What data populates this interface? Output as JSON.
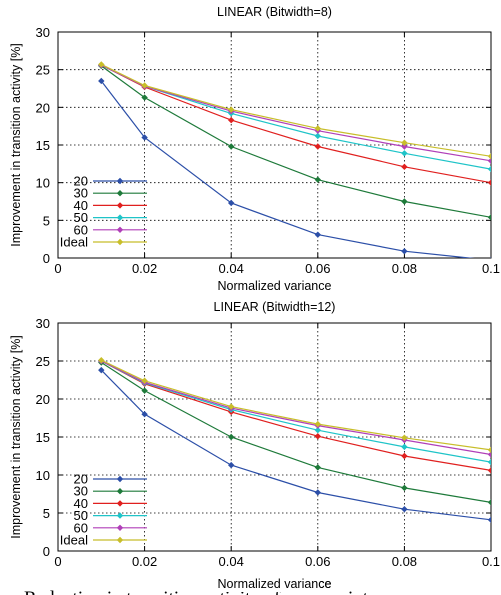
{
  "chart_data": [
    {
      "type": "line",
      "title": "LINEAR (Bitwidth=8)",
      "xlabel": "Normalized variance",
      "ylabel": "Improvement in transition activity [%]",
      "xlim": [
        0,
        0.1
      ],
      "ylim": [
        0,
        30
      ],
      "x_ticks": [
        "0",
        "0.02",
        "0.04",
        "0.06",
        "0.08",
        "0.1"
      ],
      "y_ticks": [
        "0",
        "5",
        "10",
        "15",
        "20",
        "25",
        "30"
      ],
      "grid": true,
      "legend_position": "bottom-left",
      "x": [
        0.01,
        0.02,
        0.04,
        0.06,
        0.08,
        0.1
      ],
      "series": [
        {
          "name": "20",
          "color": "#2c4fa8",
          "values": [
            23.5,
            16.0,
            7.3,
            3.1,
            0.9,
            -0.3
          ]
        },
        {
          "name": "30",
          "color": "#1e7a3a",
          "values": [
            25.5,
            21.3,
            14.8,
            10.4,
            7.5,
            5.4
          ]
        },
        {
          "name": "40",
          "color": "#e0201f",
          "values": [
            25.6,
            22.7,
            18.3,
            14.8,
            12.1,
            10.0
          ]
        },
        {
          "name": "50",
          "color": "#1fc4c8",
          "values": [
            25.6,
            22.8,
            19.2,
            16.2,
            13.9,
            11.8
          ]
        },
        {
          "name": "60",
          "color": "#b03fb8",
          "values": [
            25.6,
            22.8,
            19.5,
            16.9,
            14.8,
            12.9
          ]
        },
        {
          "name": "Ideal",
          "color": "#c8be2a",
          "values": [
            25.7,
            22.9,
            19.7,
            17.2,
            15.3,
            13.5
          ]
        }
      ]
    },
    {
      "type": "line",
      "title": "LINEAR (Bitwidth=12)",
      "xlabel": "Normalized variance",
      "ylabel": "Improvement in transition activity [%]",
      "xlim": [
        0,
        0.1
      ],
      "ylim": [
        0,
        30
      ],
      "x_ticks": [
        "0",
        "0.02",
        "0.04",
        "0.06",
        "0.08",
        "0.1"
      ],
      "y_ticks": [
        "0",
        "5",
        "10",
        "15",
        "20",
        "25",
        "30"
      ],
      "grid": true,
      "legend_position": "bottom-left",
      "x": [
        0.01,
        0.02,
        0.04,
        0.06,
        0.08,
        0.1
      ],
      "series": [
        {
          "name": "20",
          "color": "#2c4fa8",
          "values": [
            23.8,
            18.0,
            11.3,
            7.7,
            5.5,
            4.1
          ]
        },
        {
          "name": "30",
          "color": "#1e7a3a",
          "values": [
            24.8,
            21.1,
            15.0,
            11.0,
            8.3,
            6.4
          ]
        },
        {
          "name": "40",
          "color": "#e0201f",
          "values": [
            25.0,
            22.0,
            18.3,
            15.1,
            12.5,
            10.6
          ]
        },
        {
          "name": "50",
          "color": "#1fc4c8",
          "values": [
            25.0,
            22.1,
            18.6,
            15.9,
            13.7,
            11.7
          ]
        },
        {
          "name": "60",
          "color": "#b03fb8",
          "values": [
            25.0,
            22.2,
            18.8,
            16.5,
            14.6,
            12.7
          ]
        },
        {
          "name": "Ideal",
          "color": "#c8be2a",
          "values": [
            25.1,
            22.4,
            19.0,
            16.7,
            14.9,
            13.3
          ]
        }
      ]
    }
  ],
  "footer_text": "Reduction in transition activity of array pointer"
}
